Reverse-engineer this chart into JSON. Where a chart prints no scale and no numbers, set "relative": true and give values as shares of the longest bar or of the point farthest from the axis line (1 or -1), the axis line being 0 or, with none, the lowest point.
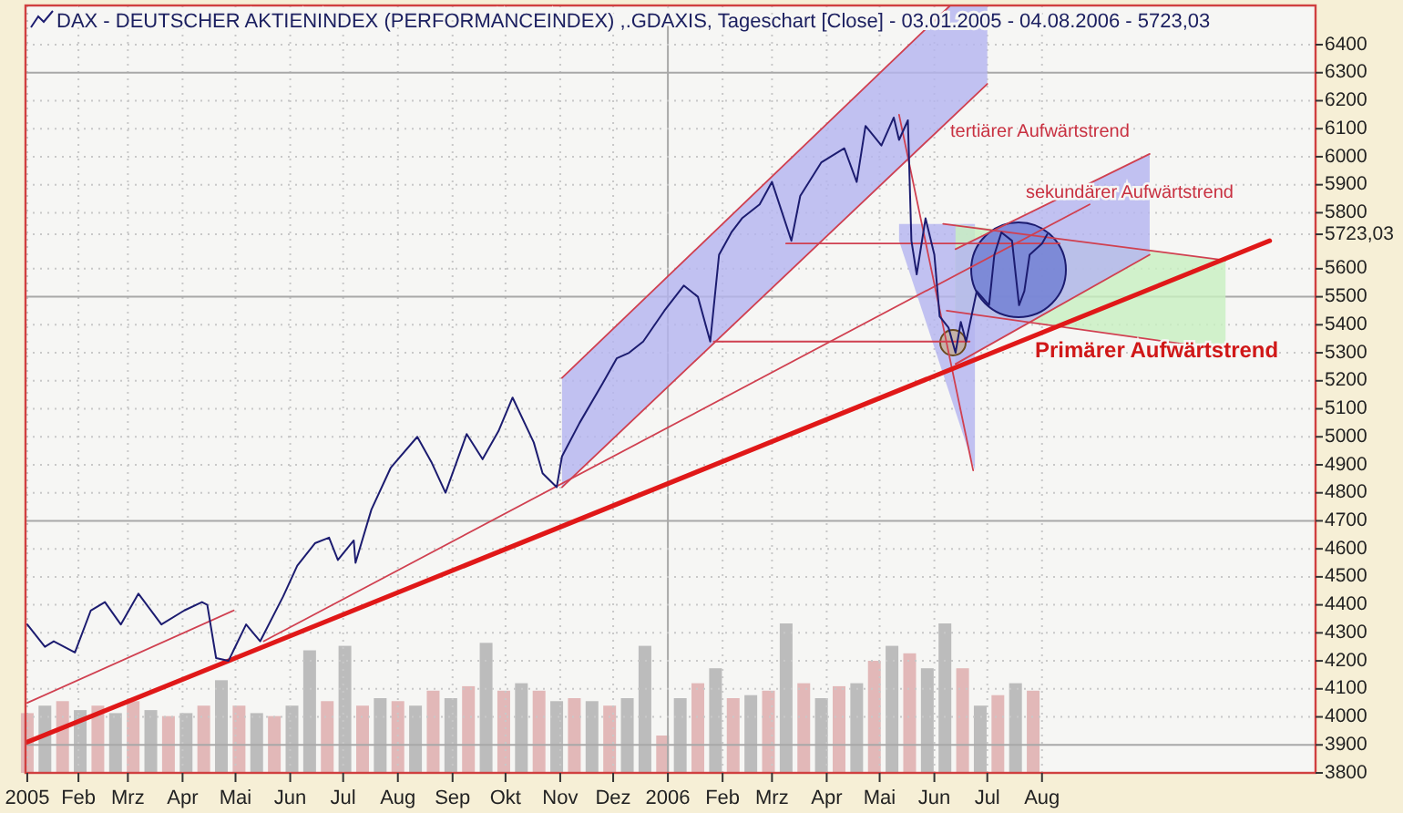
{
  "chart_data": [
    {
      "type": "line",
      "title": "DAX  - DEUTSCHER AKTIENINDEX (PERFORMANCEINDEX) ,.GDAXIS, Tageschart [Close] - 03.01.2005 - 04.08.2006 - 5723,03",
      "xlim": [
        "2005-01-02",
        "2007-01-03"
      ],
      "xticks": [
        {
          "value": "2005-01-03",
          "label": "2005"
        },
        {
          "value": "2005-02-01",
          "label": "Feb"
        },
        {
          "value": "2005-03-01",
          "label": "Mrz"
        },
        {
          "value": "2005-04-01",
          "label": "Apr"
        },
        {
          "value": "2005-05-01",
          "label": "Mai"
        },
        {
          "value": "2005-06-01",
          "label": "Jun"
        },
        {
          "value": "2005-07-01",
          "label": "Jul"
        },
        {
          "value": "2005-08-01",
          "label": "Aug"
        },
        {
          "value": "2005-09-01",
          "label": "Sep"
        },
        {
          "value": "2005-10-01",
          "label": "Okt"
        },
        {
          "value": "2005-11-01",
          "label": "Nov"
        },
        {
          "value": "2005-12-01",
          "label": "Dez"
        },
        {
          "value": "2006-01-01",
          "label": "2006"
        },
        {
          "value": "2006-02-01",
          "label": "Feb"
        },
        {
          "value": "2006-03-01",
          "label": "Mrz"
        },
        {
          "value": "2006-04-01",
          "label": "Apr"
        },
        {
          "value": "2006-05-01",
          "label": "Mai"
        },
        {
          "value": "2006-06-01",
          "label": "Jun"
        },
        {
          "value": "2006-07-01",
          "label": "Jul"
        },
        {
          "value": "2006-08-01",
          "label": "Aug"
        }
      ],
      "ylim": [
        3800,
        6540
      ],
      "yticks": [
        3800,
        3900,
        4000,
        4100,
        4200,
        4300,
        4400,
        4500,
        4600,
        4700,
        4800,
        4900,
        5000,
        5100,
        5200,
        5300,
        5400,
        5500,
        5600,
        {
          "value": 5723.03,
          "label": "5723,03"
        },
        5800,
        5900,
        6000,
        6100,
        6200,
        6300,
        6400
      ],
      "grid": true,
      "annotations": [
        {
          "text": "tertiärer Aufwärtstrend",
          "x": "2006-06-10",
          "y": 6090
        },
        "sekundärer Aufwärtstrend",
        "Primärer Aufwärtstrend"
      ],
      "series": [
        {
          "color": "#1c1c70",
          "x": [
            "2005-01-03",
            "2005-01-13",
            "2005-01-18",
            "2005-01-30",
            "2005-02-08",
            "2005-02-16",
            "2005-02-25",
            "2005-03-07",
            "2005-03-20",
            "2005-04-02",
            "2005-04-12",
            "2005-04-15",
            "2005-04-20",
            "2005-04-27",
            "2005-05-07",
            "2005-05-15",
            "2005-05-28",
            "2005-06-05",
            "2005-06-15",
            "2005-06-23",
            "2005-06-28",
            "2005-07-07",
            "2005-07-08",
            "2005-07-17",
            "2005-07-28",
            "2005-08-12",
            "2005-08-20",
            "2005-08-28",
            "2005-09-09",
            "2005-09-18",
            "2005-09-27",
            "2005-10-05",
            "2005-10-17",
            "2005-10-22",
            "2005-10-30",
            "2005-11-02",
            "2005-11-12",
            "2005-11-25",
            "2005-12-03",
            "2005-12-10",
            "2005-12-18",
            "2005-12-30",
            "2006-01-10",
            "2006-01-18",
            "2006-01-25",
            "2006-01-30",
            "2006-02-06",
            "2006-02-12",
            "2006-02-22",
            "2006-03-01",
            "2006-03-12",
            "2006-03-17",
            "2006-03-29",
            "2006-04-11",
            "2006-04-18",
            "2006-04-23",
            "2006-05-02",
            "2006-05-09",
            "2006-05-12",
            "2006-05-17",
            "2006-05-19",
            "2006-05-22",
            "2006-05-27",
            "2006-06-01",
            "2006-06-04",
            "2006-06-09",
            "2006-06-13",
            "2006-06-16",
            "2006-06-19",
            "2006-06-25",
            "2006-07-02",
            "2006-07-05",
            "2006-07-09",
            "2006-07-15",
            "2006-07-19",
            "2006-07-22",
            "2006-07-25",
            "2006-08-01",
            "2006-08-04"
          ],
          "values": [
            4330,
            4250,
            4270,
            4230,
            4380,
            4410,
            4330,
            4440,
            4330,
            4380,
            4410,
            4400,
            4210,
            4200,
            4330,
            4270,
            4430,
            4540,
            4620,
            4640,
            4560,
            4630,
            4550,
            4740,
            4890,
            5000,
            4910,
            4800,
            5010,
            4920,
            5020,
            5140,
            4980,
            4870,
            4820,
            4930,
            5050,
            5190,
            5280,
            5300,
            5340,
            5450,
            5540,
            5500,
            5340,
            5650,
            5730,
            5780,
            5830,
            5910,
            5700,
            5860,
            5980,
            6030,
            5910,
            6110,
            6040,
            6140,
            6060,
            6130,
            5700,
            5580,
            5780,
            5650,
            5430,
            5390,
            5300,
            5410,
            5340,
            5520,
            5470,
            5650,
            5730,
            5700,
            5470,
            5520,
            5650,
            5690,
            5723.03
          ]
        },
        {
          "color": "#e01818",
          "x": [
            "2005-01-03",
            "2006-12-08"
          ],
          "values": [
            3910,
            5700
          ]
        },
        {
          "color": "#d04050",
          "x": [
            "2005-01-03",
            "2005-04-30"
          ],
          "values": [
            4050,
            4380
          ]
        },
        {
          "color": "#d04050",
          "x": [
            "2005-05-17",
            "2006-08-28"
          ],
          "values": [
            4270,
            5830
          ]
        },
        {
          "color": "#d04050",
          "x": [
            "2006-05-12",
            "2006-06-23"
          ],
          "values": [
            6150,
            4880
          ]
        },
        {
          "color": "#d04050",
          "x": [
            "2006-01-27",
            "2006-06-21"
          ],
          "values": [
            5340,
            5340
          ]
        },
        {
          "color": "#d04050",
          "x": [
            "2006-03-09",
            "2006-08-11"
          ],
          "values": [
            5690,
            5690
          ]
        },
        {
          "color": "#d04050",
          "x": [
            "2005-11-02",
            "2006-07-01"
          ],
          "values": [
            4820,
            6260
          ]
        },
        {
          "color": "#d04050",
          "x": [
            "2005-11-02",
            "2006-06-10"
          ],
          "values": [
            5210,
            6540
          ]
        },
        {
          "color": "#d04050",
          "x": [
            "2006-06-06",
            "2006-11-13"
          ],
          "values": [
            5760,
            5630
          ]
        },
        {
          "color": "#d04050",
          "x": [
            "2006-06-08",
            "2006-11-13"
          ],
          "values": [
            5450,
            5310
          ]
        },
        {
          "color": "#d04050",
          "x": [
            "2006-06-13",
            "2006-10-01"
          ],
          "values": [
            5260,
            5650
          ]
        },
        {
          "color": "#d04050",
          "x": [
            "2006-06-13",
            "2006-10-01"
          ],
          "values": [
            5670,
            6010
          ]
        },
        {
          "color": "#b4b4f0",
          "x": [
            "2005-11-02",
            "2006-06-10",
            "2006-07-01"
          ],
          "values": [
            null,
            null,
            null
          ],
          "lower": [
            4820,
            6130,
            6260
          ],
          "upper": [
            5210,
            6540,
            6540
          ]
        },
        {
          "color": "#b4b4f0",
          "x": [
            "2006-05-12",
            "2006-06-24"
          ],
          "values": [
            null,
            null
          ],
          "lower": [
            5700,
            4880
          ],
          "upper": [
            5760,
            5760
          ]
        },
        {
          "color": "#c8f0c0",
          "x": [
            "2006-06-13",
            "2006-11-13"
          ],
          "values": [
            null,
            null
          ],
          "lower": [
            5450,
            5310
          ],
          "upper": [
            5760,
            5630
          ]
        },
        {
          "color": "#b4b4f0",
          "x": [
            "2006-06-13",
            "2006-10-01"
          ],
          "values": [
            null,
            null
          ],
          "lower": [
            5260,
            5650
          ],
          "upper": [
            5670,
            6010
          ]
        }
      ]
    },
    {
      "type": "bar",
      "relative": true,
      "xlim": [
        "2005-01-02",
        "2007-01-03"
      ],
      "x": [
        "2005-01-03",
        "2005-01-13",
        "2005-01-23",
        "2005-02-02",
        "2005-02-12",
        "2005-02-22",
        "2005-03-04",
        "2005-03-14",
        "2005-03-24",
        "2005-04-03",
        "2005-04-13",
        "2005-04-23",
        "2005-05-03",
        "2005-05-13",
        "2005-05-23",
        "2005-06-02",
        "2005-06-12",
        "2005-06-22",
        "2005-07-02",
        "2005-07-12",
        "2005-07-22",
        "2005-08-01",
        "2005-08-11",
        "2005-08-21",
        "2005-08-31",
        "2005-09-10",
        "2005-09-20",
        "2005-09-30",
        "2005-10-10",
        "2005-10-20",
        "2005-10-30",
        "2005-11-09",
        "2005-11-19",
        "2005-11-29",
        "2005-12-09",
        "2005-12-19",
        "2005-12-29",
        "2006-01-08",
        "2006-01-18",
        "2006-01-28",
        "2006-02-07",
        "2006-02-17",
        "2006-02-27",
        "2006-03-09",
        "2006-03-19",
        "2006-03-29",
        "2006-04-08",
        "2006-04-18",
        "2006-04-28",
        "2006-05-08",
        "2006-05-18",
        "2006-05-28",
        "2006-06-07",
        "2006-06-17",
        "2006-06-27",
        "2006-07-07",
        "2006-07-17",
        "2006-07-27"
      ],
      "values": [
        0.4,
        0.45,
        0.48,
        0.42,
        0.45,
        0.4,
        0.48,
        0.42,
        0.38,
        0.4,
        0.45,
        0.62,
        0.45,
        0.4,
        0.38,
        0.45,
        0.82,
        0.48,
        0.85,
        0.45,
        0.5,
        0.48,
        0.45,
        0.55,
        0.5,
        0.58,
        0.87,
        0.55,
        0.6,
        0.55,
        0.48,
        0.5,
        0.48,
        0.45,
        0.5,
        0.85,
        0.25,
        0.5,
        0.6,
        0.7,
        0.5,
        0.52,
        0.55,
        1.0,
        0.6,
        0.5,
        0.58,
        0.6,
        0.75,
        0.85,
        0.8,
        0.7,
        1.0,
        0.7,
        0.45,
        0.52,
        0.6,
        0.55
      ],
      "colors": [
        "#e2b8b8",
        "#bcbcbc",
        "#e2b8b8",
        "#bcbcbc",
        "#e2b8b8",
        "#bcbcbc",
        "#e2b8b8",
        "#bcbcbc",
        "#e2b8b8",
        "#bcbcbc",
        "#e2b8b8",
        "#bcbcbc",
        "#e2b8b8",
        "#bcbcbc",
        "#e2b8b8",
        "#bcbcbc",
        "#bcbcbc",
        "#e2b8b8",
        "#bcbcbc",
        "#e2b8b8",
        "#bcbcbc",
        "#e2b8b8",
        "#bcbcbc",
        "#e2b8b8",
        "#bcbcbc",
        "#e2b8b8",
        "#bcbcbc",
        "#e2b8b8",
        "#bcbcbc",
        "#e2b8b8",
        "#bcbcbc",
        "#e2b8b8",
        "#bcbcbc",
        "#e2b8b8",
        "#bcbcbc",
        "#bcbcbc",
        "#e2b8b8",
        "#bcbcbc",
        "#e2b8b8",
        "#bcbcbc",
        "#e2b8b8",
        "#bcbcbc",
        "#e2b8b8",
        "#bcbcbc",
        "#e2b8b8",
        "#bcbcbc",
        "#e2b8b8",
        "#bcbcbc",
        "#e2b8b8",
        "#bcbcbc",
        "#e2b8b8",
        "#bcbcbc",
        "#bcbcbc",
        "#e2b8b8",
        "#bcbcbc",
        "#e2b8b8",
        "#bcbcbc",
        "#e2b8b8"
      ]
    }
  ]
}
